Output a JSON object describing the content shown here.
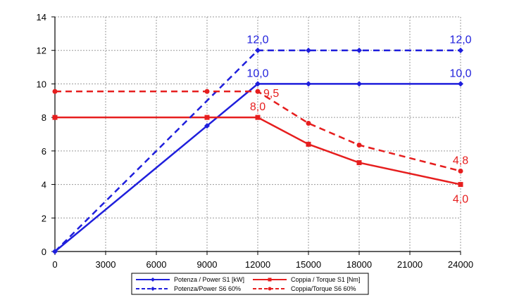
{
  "chart_data": {
    "type": "line",
    "x_ticks": [
      0,
      3000,
      6000,
      9000,
      12000,
      15000,
      18000,
      21000,
      24000
    ],
    "y_ticks": [
      0,
      2,
      4,
      6,
      8,
      10,
      12,
      14
    ],
    "xlim": [
      0,
      24000
    ],
    "ylim": [
      0,
      14
    ],
    "grid": true,
    "legend_position": "bottom",
    "series": [
      {
        "name": "Potenza / Power S1 [kW]",
        "color": "#1f1fdc",
        "line_style": "solid",
        "marker": "diamond",
        "points": [
          [
            0,
            0
          ],
          [
            9000,
            7.5
          ],
          [
            12000,
            10
          ],
          [
            15000,
            10
          ],
          [
            18000,
            10
          ],
          [
            24000,
            10
          ]
        ]
      },
      {
        "name": "Coppia / Torque S1 [Nm]",
        "color": "#e61e1e",
        "line_style": "solid",
        "marker": "square",
        "points": [
          [
            0,
            8
          ],
          [
            9000,
            8
          ],
          [
            12000,
            8
          ],
          [
            15000,
            6.4
          ],
          [
            18000,
            5.3
          ],
          [
            24000,
            4
          ]
        ]
      },
      {
        "name": "Potenza/Power S6 60%",
        "color": "#1f1fdc",
        "line_style": "dashed",
        "marker": "diamond",
        "points": [
          [
            0,
            0
          ],
          [
            12000,
            12
          ],
          [
            15000,
            12
          ],
          [
            18000,
            12
          ],
          [
            24000,
            12
          ]
        ]
      },
      {
        "name": "Coppia/Torque S6 60%",
        "color": "#e61e1e",
        "line_style": "dashed",
        "marker": "circle",
        "points": [
          [
            0,
            9.55
          ],
          [
            9000,
            9.55
          ],
          [
            12000,
            9.55
          ],
          [
            15000,
            7.65
          ],
          [
            18000,
            6.35
          ],
          [
            24000,
            4.8
          ]
        ]
      }
    ],
    "annotations": [
      {
        "text": "12,0",
        "x": 12000,
        "y": 12.0,
        "color": "#1f1fdc",
        "position": "above"
      },
      {
        "text": "12,0",
        "x": 24000,
        "y": 12.0,
        "color": "#1f1fdc",
        "position": "above"
      },
      {
        "text": "10,0",
        "x": 12000,
        "y": 10.0,
        "color": "#1f1fdc",
        "position": "above"
      },
      {
        "text": "10,0",
        "x": 24000,
        "y": 10.0,
        "color": "#1f1fdc",
        "position": "above"
      },
      {
        "text": "9,5",
        "x": 12000,
        "y": 9.55,
        "color": "#e61e1e",
        "position": "right"
      },
      {
        "text": "8,0",
        "x": 12000,
        "y": 8.0,
        "color": "#e61e1e",
        "position": "above"
      },
      {
        "text": "4,8",
        "x": 24000,
        "y": 4.8,
        "color": "#e61e1e",
        "position": "above"
      },
      {
        "text": "4,0",
        "x": 24000,
        "y": 4.0,
        "color": "#e61e1e",
        "position": "below"
      }
    ]
  }
}
